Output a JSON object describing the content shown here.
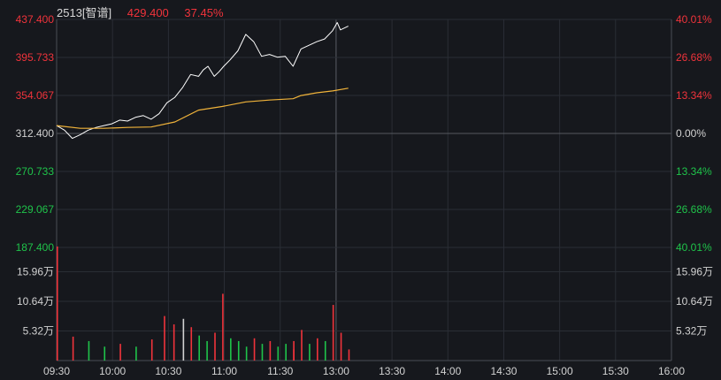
{
  "header": {
    "symbol": "2513[智谱]",
    "price": "429.400",
    "change_pct": "37.45%"
  },
  "colors": {
    "bg": "#16181d",
    "grid": "#2a2e35",
    "axis_line": "#4a4e55",
    "up": "#f0333b",
    "down": "#1fc34a",
    "neutral": "#d2d2d2",
    "price_line": "#ffffff",
    "avg_line": "#f0b33a"
  },
  "chart_data": [
    {
      "type": "line",
      "title": "",
      "x_ticks": [
        "09:30",
        "10:00",
        "10:30",
        "11:00",
        "11:30",
        "13:00",
        "13:30",
        "14:00",
        "14:30",
        "15:00",
        "15:30",
        "16:00"
      ],
      "y_left_ticks": [
        "437.400",
        "395.733",
        "354.067",
        "312.400",
        "270.733",
        "229.067",
        "187.400"
      ],
      "y_right_ticks": [
        "40.01%",
        "26.68%",
        "13.34%",
        "0.00%",
        "13.34%",
        "26.68%",
        "40.01%"
      ],
      "ylim": [
        187.4,
        437.4
      ],
      "base_price": 312.4,
      "series": [
        {
          "key": "price",
          "x": [
            "09:30",
            "09:35",
            "09:40",
            "09:45",
            "09:50",
            "09:55",
            "10:00",
            "10:05",
            "10:10",
            "10:15",
            "10:20",
            "10:25",
            "10:30",
            "10:35",
            "10:40",
            "10:45",
            "10:50",
            "10:55",
            "11:00",
            "11:03",
            "11:06",
            "11:10",
            "11:13",
            "11:16",
            "11:20",
            "11:25",
            "11:30",
            "11:35",
            "11:40",
            "11:45",
            "11:50",
            "11:55",
            "12:00",
            "13:05",
            "13:10",
            "13:15",
            "13:20",
            "13:25",
            "13:28",
            "13:30",
            "13:35"
          ],
          "y": [
            321.0,
            316.0,
            307.0,
            311.0,
            316.0,
            319.0,
            321.0,
            323.0,
            327.0,
            326.0,
            330.0,
            332.0,
            328.0,
            334.0,
            346.0,
            352.0,
            363.0,
            377.0,
            375.0,
            382.0,
            386.0,
            375.0,
            380.0,
            386.0,
            393.0,
            403.0,
            421.0,
            413.0,
            397.0,
            399.0,
            396.0,
            397.0,
            386.0,
            405.0,
            409.0,
            413.0,
            416.0,
            425.0,
            434.0,
            426.0,
            430.0
          ]
        },
        {
          "key": "average",
          "x": [
            "09:30",
            "09:45",
            "10:00",
            "10:15",
            "10:30",
            "10:45",
            "11:00",
            "11:15",
            "11:30",
            "11:45",
            "12:00",
            "13:05",
            "13:15",
            "13:25",
            "13:35"
          ],
          "y": [
            321.0,
            318.0,
            318.0,
            319.0,
            319.5,
            325.0,
            338.0,
            342.0,
            347.0,
            349.0,
            350.5,
            354.0,
            357.0,
            359.0,
            362.0
          ]
        }
      ]
    },
    {
      "type": "bar",
      "title": "",
      "y_ticks": [
        "15.96万",
        "10.64万",
        "5.32万"
      ],
      "ylim": [
        0,
        21.28
      ],
      "unit": "万",
      "bars_x": [
        "09:30",
        "09:40",
        "09:50",
        "10:00",
        "10:10",
        "10:20",
        "10:30",
        "10:38",
        "10:44",
        "10:50",
        "10:55",
        "11:00",
        "11:05",
        "11:10",
        "11:15",
        "11:20",
        "11:25",
        "11:30",
        "11:35",
        "11:40",
        "11:45",
        "11:50",
        "11:55",
        "12:00",
        "13:00",
        "13:05",
        "13:10",
        "13:15",
        "13:20",
        "13:25",
        "13:30",
        "13:35"
      ],
      "bars_v": [
        20.5,
        4.3,
        3.5,
        2.5,
        3.0,
        2.5,
        3.8,
        8.0,
        6.5,
        7.5,
        6.0,
        4.5,
        3.5,
        5.0,
        12.0,
        4.0,
        3.5,
        2.5,
        4.0,
        3.0,
        3.5,
        2.5,
        3.0,
        2.0,
        3.5,
        5.5,
        3.0,
        4.0,
        3.5,
        10.0,
        5.0,
        2.0
      ],
      "bars_dir": [
        "up",
        "up",
        "down",
        "down",
        "up",
        "down",
        "up",
        "up",
        "up",
        "neutral",
        "up",
        "down",
        "down",
        "up",
        "up",
        "down",
        "down",
        "down",
        "up",
        "down",
        "up",
        "down",
        "down",
        "up",
        "up",
        "up",
        "down",
        "up",
        "down",
        "up",
        "up",
        "up"
      ]
    }
  ]
}
